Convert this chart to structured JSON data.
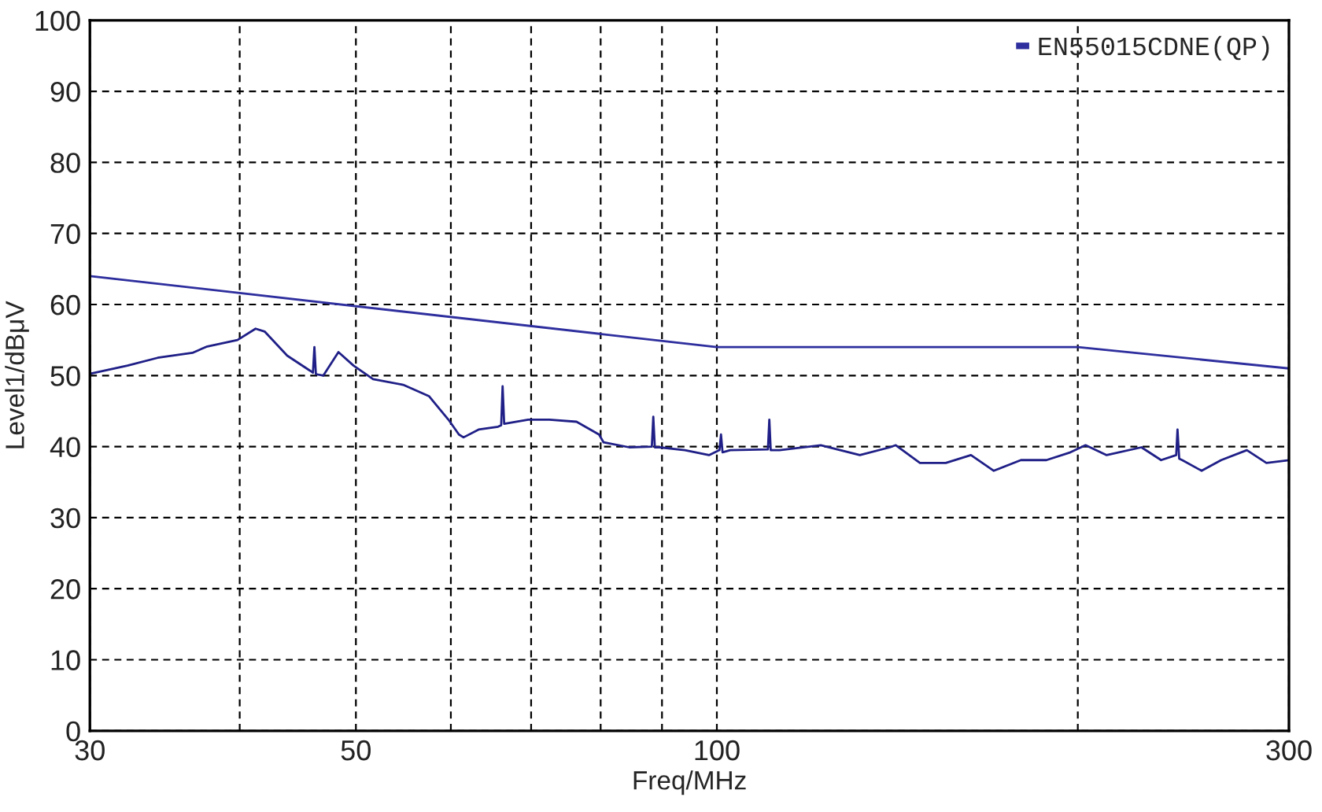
{
  "chart_data": {
    "type": "line",
    "xlabel": "Freq/MHz",
    "ylabel": "Level1/dBμV",
    "log": "x",
    "grid": true,
    "legend": "top right",
    "line_style": "solid",
    "marker": "none",
    "xlim": [
      30,
      300
    ],
    "xticks": [
      30,
      {
        "value": 40,
        "label": null
      },
      50,
      {
        "value": 60,
        "label": null
      },
      {
        "value": 70,
        "label": null
      },
      {
        "value": 80,
        "label": null
      },
      {
        "value": 90,
        "label": null
      },
      100,
      {
        "value": 200,
        "label": null
      },
      300
    ],
    "ylim": [
      0,
      100
    ],
    "yticks": [
      0,
      10,
      20,
      30,
      40,
      50,
      60,
      70,
      80,
      90,
      100
    ],
    "series": [
      {
        "name": "EN55015CDNE(QP)",
        "color": "#2e2e9e",
        "x": [
          30,
          100,
          200,
          300
        ],
        "values": [
          64,
          54,
          54,
          51
        ]
      },
      {
        "color": "#1f1f87",
        "x": [
          30.09,
          32.25,
          34.17,
          36.53,
          37.59,
          39.83,
          41.24,
          41.96,
          43.82,
          45.77,
          46.04,
          46.17,
          46.3,
          46.97,
          48.35,
          49.77,
          51.68,
          54.75,
          57.53,
          59.72,
          60.94,
          61.48,
          63.28,
          65.7,
          66.09,
          66.27,
          66.47,
          69.61,
          72.5,
          76.38,
          79.75,
          80.45,
          84.52,
          88.26,
          88.51,
          88.77,
          89.55,
          94.04,
          98.5,
          100.5,
          100.8,
          101.1,
          102.6,
          110.3,
          110.6,
          110.9,
          112.8,
          122.1,
          131.6,
          139.4,
          141.0,
          147.7,
          155.2,
          162.9,
          170.2,
          179.3,
          188.3,
          197.2,
          203.0,
          211.4,
          226.0,
          234.7,
          241.6,
          242.2,
          243.0,
          244.4,
          253.7,
          263.4,
          276.7,
          287.3,
          300
        ],
        "values": [
          50.3,
          51.4,
          52.5,
          53.2,
          54.1,
          55.0,
          56.6,
          56.2,
          52.8,
          50.7,
          50.4,
          54.0,
          50.2,
          50.0,
          53.3,
          51.4,
          49.5,
          48.7,
          47.1,
          43.8,
          41.7,
          41.3,
          42.4,
          42.8,
          43.0,
          48.5,
          43.2,
          43.8,
          43.8,
          43.5,
          41.7,
          40.6,
          39.9,
          40.0,
          44.2,
          39.9,
          39.9,
          39.5,
          38.8,
          39.5,
          41.7,
          39.2,
          39.5,
          39.6,
          43.8,
          39.5,
          39.5,
          40.2,
          38.8,
          39.9,
          40.2,
          37.7,
          37.7,
          38.8,
          36.6,
          38.1,
          38.1,
          39.2,
          40.2,
          38.8,
          39.9,
          38.1,
          38.8,
          42.4,
          38.3,
          38.1,
          36.6,
          38.1,
          39.5,
          37.7,
          38.1
        ]
      }
    ]
  }
}
